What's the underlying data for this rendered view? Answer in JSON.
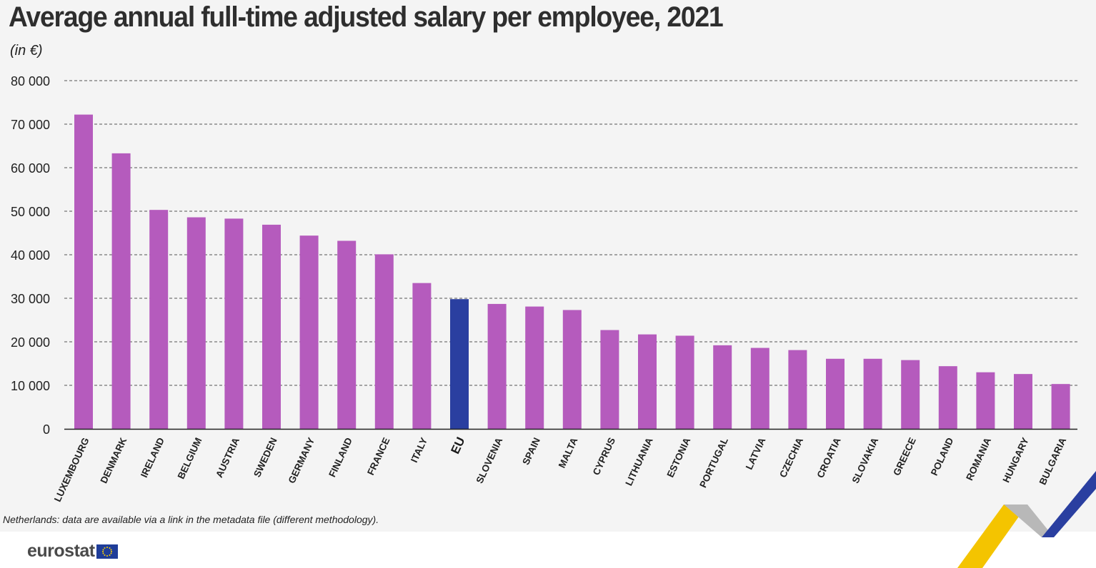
{
  "header": {
    "title": "Average annual full-time adjusted salary per employee, 2021",
    "unit": "(in €)"
  },
  "footer": {
    "note": "Netherlands: data are available via a link in the metadata file (different methodology).",
    "logo_text": "eurostat"
  },
  "colors": {
    "bar": "#b55bbd",
    "eu_bar": "#2a3fa0",
    "gridline": "#555555",
    "panel_bg": "#f4f4f4"
  },
  "chart_data": {
    "type": "bar",
    "categories": [
      "LUXEMBOURG",
      "DENMARK",
      "IRELAND",
      "BELGIUM",
      "AUSTRIA",
      "SWEDEN",
      "GERMANY",
      "FINLAND",
      "FRANCE",
      "ITALY",
      "EU",
      "SLOVENIA",
      "SPAIN",
      "MALTA",
      "CYPRUS",
      "LITHUANIA",
      "ESTONIA",
      "PORTUGAL",
      "LATVIA",
      "CZECHIA",
      "CROATIA",
      "SLOVAKIA",
      "GREECE",
      "POLAND",
      "ROMANIA",
      "HUNGARY",
      "BULGARIA"
    ],
    "values": [
      72200,
      63300,
      50300,
      48600,
      48300,
      46900,
      44400,
      43200,
      40100,
      33500,
      29800,
      28700,
      28100,
      27300,
      22700,
      21700,
      21400,
      19200,
      18600,
      18100,
      16100,
      16100,
      15800,
      14400,
      13000,
      12600,
      10300
    ],
    "highlight": "EU",
    "ylim": [
      0,
      80000
    ],
    "yticks": [
      0,
      10000,
      20000,
      30000,
      40000,
      50000,
      60000,
      70000,
      80000
    ],
    "ytick_labels": [
      "0",
      "10 000",
      "20 000",
      "30 000",
      "40 000",
      "50 000",
      "60 000",
      "70 000",
      "80 000"
    ],
    "grid": "horizontal dashed",
    "legend": "none"
  }
}
